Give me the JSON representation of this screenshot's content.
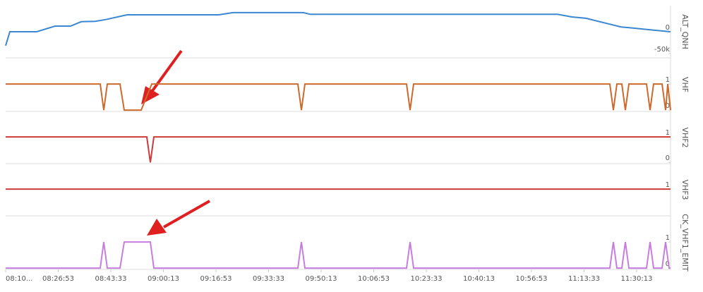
{
  "chart_data": [
    {
      "type": "line",
      "xlim": [
        "08:10:13",
        "11:40:57"
      ],
      "ylim": [
        -60000,
        60000
      ],
      "yticks": [
        0,
        {
          "value": -50000,
          "label": "-50k"
        }
      ],
      "x": [
        "08:10:13",
        "08:11:34",
        "08:20:04",
        "08:25:53",
        "08:30:48",
        "08:34:09",
        "08:38:38",
        "08:41:59",
        "08:48:42",
        "09:17:47",
        "09:22:15",
        "09:44:33",
        "09:46:48",
        "11:05:10",
        "11:09:38",
        "11:14:07",
        "11:20:49",
        "11:25:18",
        "11:29:46",
        "11:36:29",
        "11:40:57"
      ],
      "series": [
        {
          "name": "ALT_QNH",
          "color": "#3b87d1",
          "values": [
            -32000,
            0,
            0,
            13000,
            13000,
            23000,
            24000,
            28000,
            39000,
            39000,
            44000,
            44000,
            40000,
            40000,
            34000,
            31000,
            19000,
            11000,
            8000,
            3000,
            0
          ]
        }
      ]
    },
    {
      "type": "line",
      "xlim": [
        "08:10:13",
        "11:40:57"
      ],
      "ylim": [
        -0.05,
        2
      ],
      "yticks": [
        1,
        0
      ],
      "x": [
        "08:10:13",
        "08:40:12",
        "08:41:19",
        "08:42:26",
        "08:46:28",
        "08:47:48",
        "08:53:10",
        "08:56:32",
        "09:42:50",
        "09:43:57",
        "09:45:04",
        "10:17:17",
        "10:18:24",
        "10:19:31",
        "11:21:43",
        "11:22:50",
        "11:23:57",
        "11:25:31",
        "11:26:38",
        "11:27:45",
        "11:33:21",
        "11:34:28",
        "11:35:35",
        "11:38:16",
        "11:39:23",
        "11:40:04",
        "11:40:57"
      ],
      "series": [
        {
          "name": "VHF",
          "color": "#cc6a2c",
          "values": [
            1,
            1,
            0,
            1,
            1,
            0,
            0,
            1,
            1,
            0,
            1,
            1,
            0,
            1,
            1,
            0,
            1,
            1,
            0,
            1,
            1,
            0,
            1,
            1,
            0,
            1,
            0
          ]
        }
      ]
    },
    {
      "type": "line",
      "xlim": [
        "08:10:13",
        "11:40:57"
      ],
      "ylim": [
        -0.05,
        2
      ],
      "yticks": [
        1,
        0
      ],
      "x": [
        "08:10:13",
        "08:54:58",
        "08:56:05",
        "08:57:12",
        "11:40:57"
      ],
      "series": [
        {
          "name": "VHF2",
          "color": "#cc3a3a",
          "values": [
            1,
            1,
            0,
            1,
            1
          ]
        }
      ]
    },
    {
      "type": "line",
      "xlim": [
        "08:10:13",
        "11:40:57"
      ],
      "ylim": [
        -0.05,
        2
      ],
      "yticks": [
        1
      ],
      "x": [
        "08:10:13",
        "11:40:57"
      ],
      "series": [
        {
          "name": "VHF3",
          "color": "#cc3a3a",
          "values": [
            1,
            1
          ]
        }
      ]
    },
    {
      "type": "line",
      "xlim": [
        "08:10:13",
        "11:40:57"
      ],
      "ylim": [
        -0.05,
        2
      ],
      "yticks": [
        1,
        0
      ],
      "x": [
        "08:10:13",
        "08:40:12",
        "08:41:19",
        "08:42:26",
        "08:46:28",
        "08:47:48",
        "08:56:05",
        "08:57:12",
        "09:42:50",
        "09:43:57",
        "09:45:04",
        "10:17:17",
        "10:18:24",
        "10:19:31",
        "11:21:43",
        "11:22:50",
        "11:23:57",
        "11:25:31",
        "11:26:38",
        "11:27:45",
        "11:33:21",
        "11:34:28",
        "11:35:35",
        "11:38:16",
        "11:39:23",
        "11:40:30",
        "11:40:57"
      ],
      "series": [
        {
          "name": "CK_VHF1_EMIT",
          "color": "#c77de0",
          "values": [
            0,
            0,
            1,
            0,
            0,
            1,
            1,
            0,
            0,
            1,
            0,
            0,
            1,
            0,
            0,
            1,
            0,
            0,
            1,
            0,
            0,
            1,
            0,
            0,
            1,
            0,
            0
          ]
        }
      ],
      "xticks": [
        {
          "value": "08:10:13",
          "label": "08:10..."
        },
        "08:26:53",
        "08:43:33",
        "09:00:13",
        "09:16:53",
        "09:33:33",
        "09:50:13",
        "10:06:53",
        "10:23:33",
        "10:40:13",
        "10:56:53",
        "11:13:33",
        "11:30:13"
      ]
    }
  ]
}
